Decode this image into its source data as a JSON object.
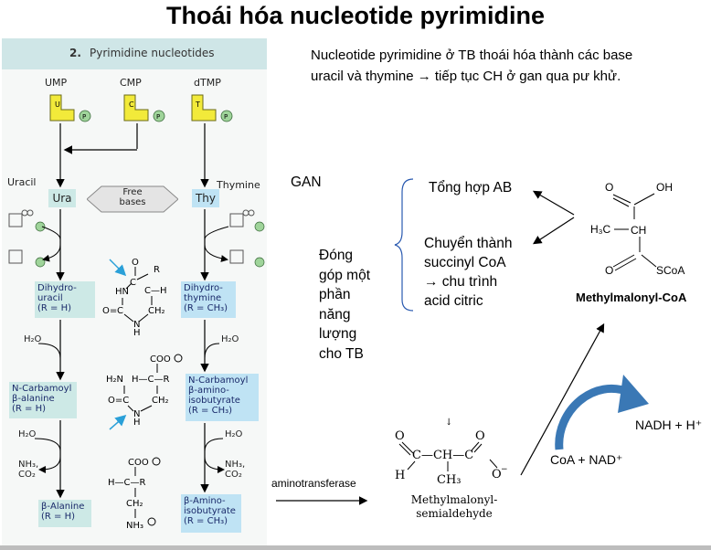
{
  "title": "Thoái hóa nucleotide pyrimidine",
  "intro": [
    "Nucleotide pyrimidine ở TB thoái hóa thành các base",
    "uracil và thymine → tiếp tục CH ở gan qua pư khử."
  ],
  "panel": {
    "header_num": "2.",
    "header_text": "Pyrimidine nucleotides",
    "nucleotides": [
      "UMP",
      "CMP",
      "dTMP"
    ],
    "uracil": "Uracil",
    "thymine": "Thymine",
    "ura": "Ura",
    "thy": "Thy",
    "free_bases": [
      "Free",
      "bases"
    ],
    "dihydrouracil": [
      "Dihydro-",
      "uracil",
      "(R = H)"
    ],
    "dihydrothymine": [
      "Dihydro-",
      "thymine",
      "(R = CH₃)"
    ],
    "n_carbamoyl_ala": [
      "N-Carbamoyl",
      "β-alanine",
      "(R = H)"
    ],
    "n_carbamoyl_aib": [
      "N-Carbamoyl",
      "β-amino-",
      "isobutyrate",
      "(R = CH₃)"
    ],
    "beta_alanine": [
      "β-Alanine",
      "(R = H)"
    ],
    "beta_aib": [
      "β-Amino-",
      "isobutyrate",
      "(R = CH₃)"
    ],
    "h2o": "H₂O",
    "nh3": "NH₃,",
    "co2": "CO₂"
  },
  "gan": "GAN",
  "dong_gop": [
    "Đóng",
    "góp một",
    "phần",
    "năng",
    "lượng",
    "cho TB"
  ],
  "tong_hop": "Tổng hợp AB",
  "chuyen": [
    "Chuyển thành",
    "succinyl CoA",
    "→ chu trình",
    "acid citric"
  ],
  "methylmalonyl_coa": "Methylmalonyl-CoA",
  "aminotransferase": "aminotransferase",
  "semialdehyde": [
    "Methylmalonyl-",
    "semialdehyde"
  ],
  "nadh": "NADH + H⁺",
  "coa_nad": "CoA + NAD⁺",
  "colors": {
    "panel_header": "#cfe6e7",
    "box_green": "#cde9e6",
    "box_blue": "#bfe3f4",
    "nucleotide_yellow": "#f2ea3a",
    "phosphate": "#9fd49a",
    "curved_arrow": "#3a78b5"
  }
}
